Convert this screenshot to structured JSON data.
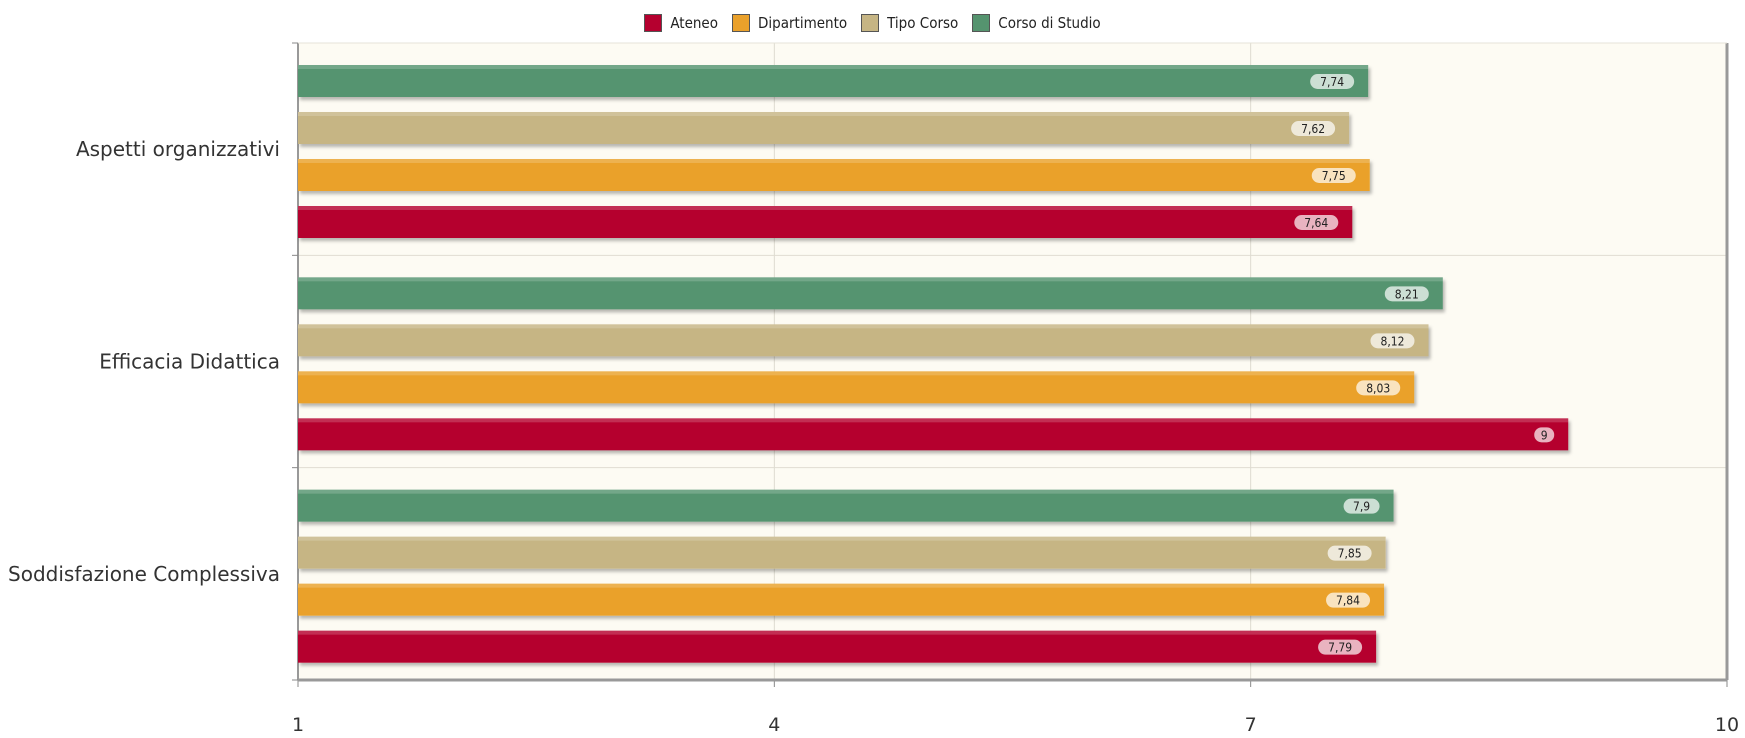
{
  "chart_data": {
    "type": "bar",
    "orientation": "horizontal",
    "categories": [
      "Aspetti organizzativi",
      "Efficacia Didattica",
      "Soddisfazione Complessiva"
    ],
    "series": [
      {
        "name": "Ateneo",
        "color": "#b5002f",
        "values": [
          7.64,
          9,
          7.79
        ],
        "labels": [
          "7,64",
          "9",
          "7,79"
        ]
      },
      {
        "name": "Dipartimento",
        "color": "#eaa12b",
        "values": [
          7.75,
          8.03,
          7.84
        ],
        "labels": [
          "7,75",
          "8,03",
          "7,84"
        ]
      },
      {
        "name": "Tipo Corso",
        "color": "#c6b584",
        "values": [
          7.62,
          8.12,
          7.85
        ],
        "labels": [
          "7,62",
          "8,12",
          "7,85"
        ]
      },
      {
        "name": "Corso di Studio",
        "color": "#55946f",
        "values": [
          7.74,
          8.21,
          7.9
        ],
        "labels": [
          "7,74",
          "8,21",
          "7,9"
        ]
      }
    ],
    "x_ticks": [
      1,
      4,
      7,
      10
    ],
    "x_tick_labels": [
      "1",
      "4",
      "7",
      "10"
    ],
    "xlim": [
      1,
      10
    ],
    "grid": true,
    "legend_position": "top-center",
    "plot_background": "#fdfbf3"
  }
}
